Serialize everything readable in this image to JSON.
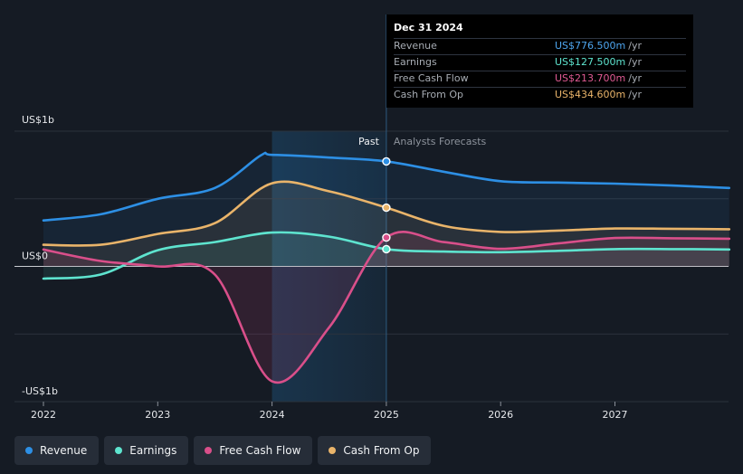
{
  "chart_data": {
    "type": "line",
    "x_labels": [
      "2022",
      "2023",
      "2024",
      "2025",
      "2026",
      "2027"
    ],
    "x_range": [
      2021.8,
      2028.0
    ],
    "ylim": [
      -1000,
      1000
    ],
    "y_ticks": [
      {
        "value": 1000,
        "label": "US$1b"
      },
      {
        "value": 0,
        "label": "US$0"
      },
      {
        "value": -1000,
        "label": "-US$1b"
      }
    ],
    "divider_x": 2025.0,
    "highlight_range": [
      2024.0,
      2025.0
    ],
    "past_label": "Past",
    "forecast_label": "Analysts Forecasts",
    "series": [
      {
        "name": "Revenue",
        "color": "#2d8fe4",
        "fill": "#2d8fe4",
        "points": [
          [
            2022.0,
            340
          ],
          [
            2022.5,
            385
          ],
          [
            2023.0,
            500
          ],
          [
            2023.5,
            580
          ],
          [
            2023.9,
            820
          ],
          [
            2024.0,
            825
          ],
          [
            2024.5,
            805
          ],
          [
            2025.0,
            776.5
          ],
          [
            2025.5,
            700
          ],
          [
            2026.0,
            630
          ],
          [
            2026.5,
            620
          ],
          [
            2027.0,
            612
          ],
          [
            2027.5,
            598
          ],
          [
            2028.0,
            580
          ]
        ]
      },
      {
        "name": "Earnings",
        "color": "#5ee4cf",
        "fill": "#5ee4cf",
        "points": [
          [
            2022.0,
            -90
          ],
          [
            2022.5,
            -60
          ],
          [
            2023.0,
            120
          ],
          [
            2023.5,
            180
          ],
          [
            2024.0,
            250
          ],
          [
            2024.5,
            220
          ],
          [
            2025.0,
            127.5
          ],
          [
            2025.5,
            110
          ],
          [
            2026.0,
            105
          ],
          [
            2026.5,
            115
          ],
          [
            2027.0,
            128
          ],
          [
            2027.5,
            128
          ],
          [
            2028.0,
            125
          ]
        ]
      },
      {
        "name": "Free Cash Flow",
        "color": "#d94f8a",
        "fill": "#c0406e",
        "points": [
          [
            2022.0,
            125
          ],
          [
            2022.5,
            40
          ],
          [
            2023.0,
            0
          ],
          [
            2023.5,
            -60
          ],
          [
            2024.0,
            -850
          ],
          [
            2024.5,
            -450
          ],
          [
            2025.0,
            213.7
          ],
          [
            2025.5,
            180
          ],
          [
            2026.0,
            130
          ],
          [
            2026.5,
            170
          ],
          [
            2027.0,
            210
          ],
          [
            2027.5,
            208
          ],
          [
            2028.0,
            205
          ]
        ]
      },
      {
        "name": "Cash From Op",
        "color": "#e9b46a",
        "fill": "#e9b46a",
        "points": [
          [
            2022.0,
            160
          ],
          [
            2022.5,
            160
          ],
          [
            2023.0,
            240
          ],
          [
            2023.5,
            320
          ],
          [
            2024.0,
            615
          ],
          [
            2024.5,
            555
          ],
          [
            2025.0,
            434.6
          ],
          [
            2025.5,
            300
          ],
          [
            2026.0,
            255
          ],
          [
            2026.5,
            265
          ],
          [
            2027.0,
            280
          ],
          [
            2027.5,
            278
          ],
          [
            2028.0,
            275
          ]
        ]
      }
    ]
  },
  "tooltip": {
    "date": "Dec 31 2024",
    "rows": [
      {
        "label": "Revenue",
        "value": "US$776.500m",
        "unit": "/yr",
        "color": "#4ea6f0"
      },
      {
        "label": "Earnings",
        "value": "US$127.500m",
        "unit": "/yr",
        "color": "#5ee4cf"
      },
      {
        "label": "Free Cash Flow",
        "value": "US$213.700m",
        "unit": "/yr",
        "color": "#e05a93"
      },
      {
        "label": "Cash From Op",
        "value": "US$434.600m",
        "unit": "/yr",
        "color": "#eab46a"
      }
    ]
  },
  "legend": [
    {
      "label": "Revenue",
      "color": "#2d8fe4"
    },
    {
      "label": "Earnings",
      "color": "#5ee4cf"
    },
    {
      "label": "Free Cash Flow",
      "color": "#d94f8a"
    },
    {
      "label": "Cash From Op",
      "color": "#e9b46a"
    }
  ]
}
